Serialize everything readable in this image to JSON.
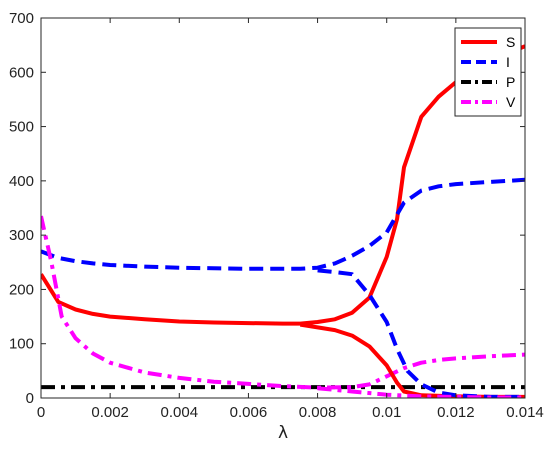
{
  "chart_data": {
    "type": "line",
    "title": "",
    "xlabel": "λ",
    "ylabel": "",
    "xlim": [
      0,
      0.014
    ],
    "ylim": [
      0,
      700
    ],
    "xticks": [
      0,
      0.002,
      0.004,
      0.006,
      0.008,
      0.01,
      0.012,
      0.014
    ],
    "xtick_labels": [
      "0",
      "0.002",
      "0.004",
      "0.006",
      "0.008",
      "0.01",
      "0.012",
      "0.014"
    ],
    "yticks": [
      0,
      100,
      200,
      300,
      400,
      500,
      600,
      700
    ],
    "ytick_labels": [
      "0",
      "100",
      "200",
      "300",
      "400",
      "500",
      "600",
      "700"
    ],
    "grid": false,
    "legend_position": "top-right",
    "series": [
      {
        "name": "S",
        "color": "#ff0000",
        "style": "solid",
        "x": [
          0,
          0.0005,
          0.001,
          0.0015,
          0.002,
          0.003,
          0.004,
          0.005,
          0.006,
          0.007,
          0.0075,
          0.008,
          0.0085,
          0.009,
          0.0095,
          0.01,
          0.0103,
          0.0105,
          0.011,
          0.0115,
          0.012,
          0.013,
          0.014
        ],
        "y": [
          228,
          177,
          163,
          155,
          150,
          145,
          141,
          139,
          138,
          137,
          137,
          140,
          145,
          157,
          185,
          260,
          330,
          425,
          518,
          555,
          582,
          622,
          648
        ]
      },
      {
        "name": "I",
        "color": "#0000ff",
        "style": "dashed",
        "x": [
          0,
          0.0005,
          0.001,
          0.0015,
          0.002,
          0.003,
          0.004,
          0.005,
          0.006,
          0.007,
          0.0075,
          0.008,
          0.0085,
          0.009,
          0.0095,
          0.01,
          0.0105,
          0.011,
          0.0115,
          0.012,
          0.013,
          0.014
        ],
        "y": [
          270,
          258,
          252,
          248,
          245,
          242,
          240,
          239,
          238,
          238,
          238,
          240,
          248,
          262,
          280,
          305,
          360,
          382,
          390,
          394,
          398,
          402
        ]
      },
      {
        "name": "P",
        "color": "#000000",
        "style": "dashdot",
        "x": [
          0,
          0.014
        ],
        "y": [
          20,
          20
        ]
      },
      {
        "name": "V",
        "color": "#ff00ff",
        "style": "dashdot",
        "x": [
          0,
          0.0003,
          0.0006,
          0.001,
          0.0015,
          0.002,
          0.003,
          0.004,
          0.005,
          0.006,
          0.007,
          0.008,
          0.009,
          0.0095,
          0.01,
          0.0105,
          0.011,
          0.0115,
          0.012,
          0.013,
          0.014
        ],
        "y": [
          335,
          250,
          150,
          110,
          82,
          65,
          47,
          37,
          30,
          26,
          22,
          19,
          20,
          25,
          40,
          55,
          65,
          70,
          73,
          77,
          80
        ]
      },
      {
        "name": "",
        "color": "#ff0000",
        "style": "solid",
        "x": [
          0.0075,
          0.008,
          0.0085,
          0.009,
          0.0095,
          0.01,
          0.0103,
          0.0105,
          0.011,
          0.012,
          0.013,
          0.014
        ],
        "y": [
          135,
          130,
          125,
          115,
          95,
          60,
          28,
          12,
          5,
          3,
          2,
          2
        ]
      },
      {
        "name": "",
        "color": "#0000ff",
        "style": "dashed",
        "x": [
          0.008,
          0.0085,
          0.009,
          0.0095,
          0.01,
          0.0103,
          0.0106,
          0.011,
          0.0115,
          0.012,
          0.013,
          0.014
        ],
        "y": [
          235,
          232,
          228,
          190,
          140,
          90,
          50,
          25,
          10,
          5,
          2,
          2
        ]
      },
      {
        "name": "",
        "color": "#ff00ff",
        "style": "dashdot",
        "x": [
          0.008,
          0.009,
          0.01,
          0.011,
          0.012,
          0.013,
          0.014
        ],
        "y": [
          18,
          12,
          6,
          3,
          2,
          1,
          1
        ]
      }
    ]
  }
}
